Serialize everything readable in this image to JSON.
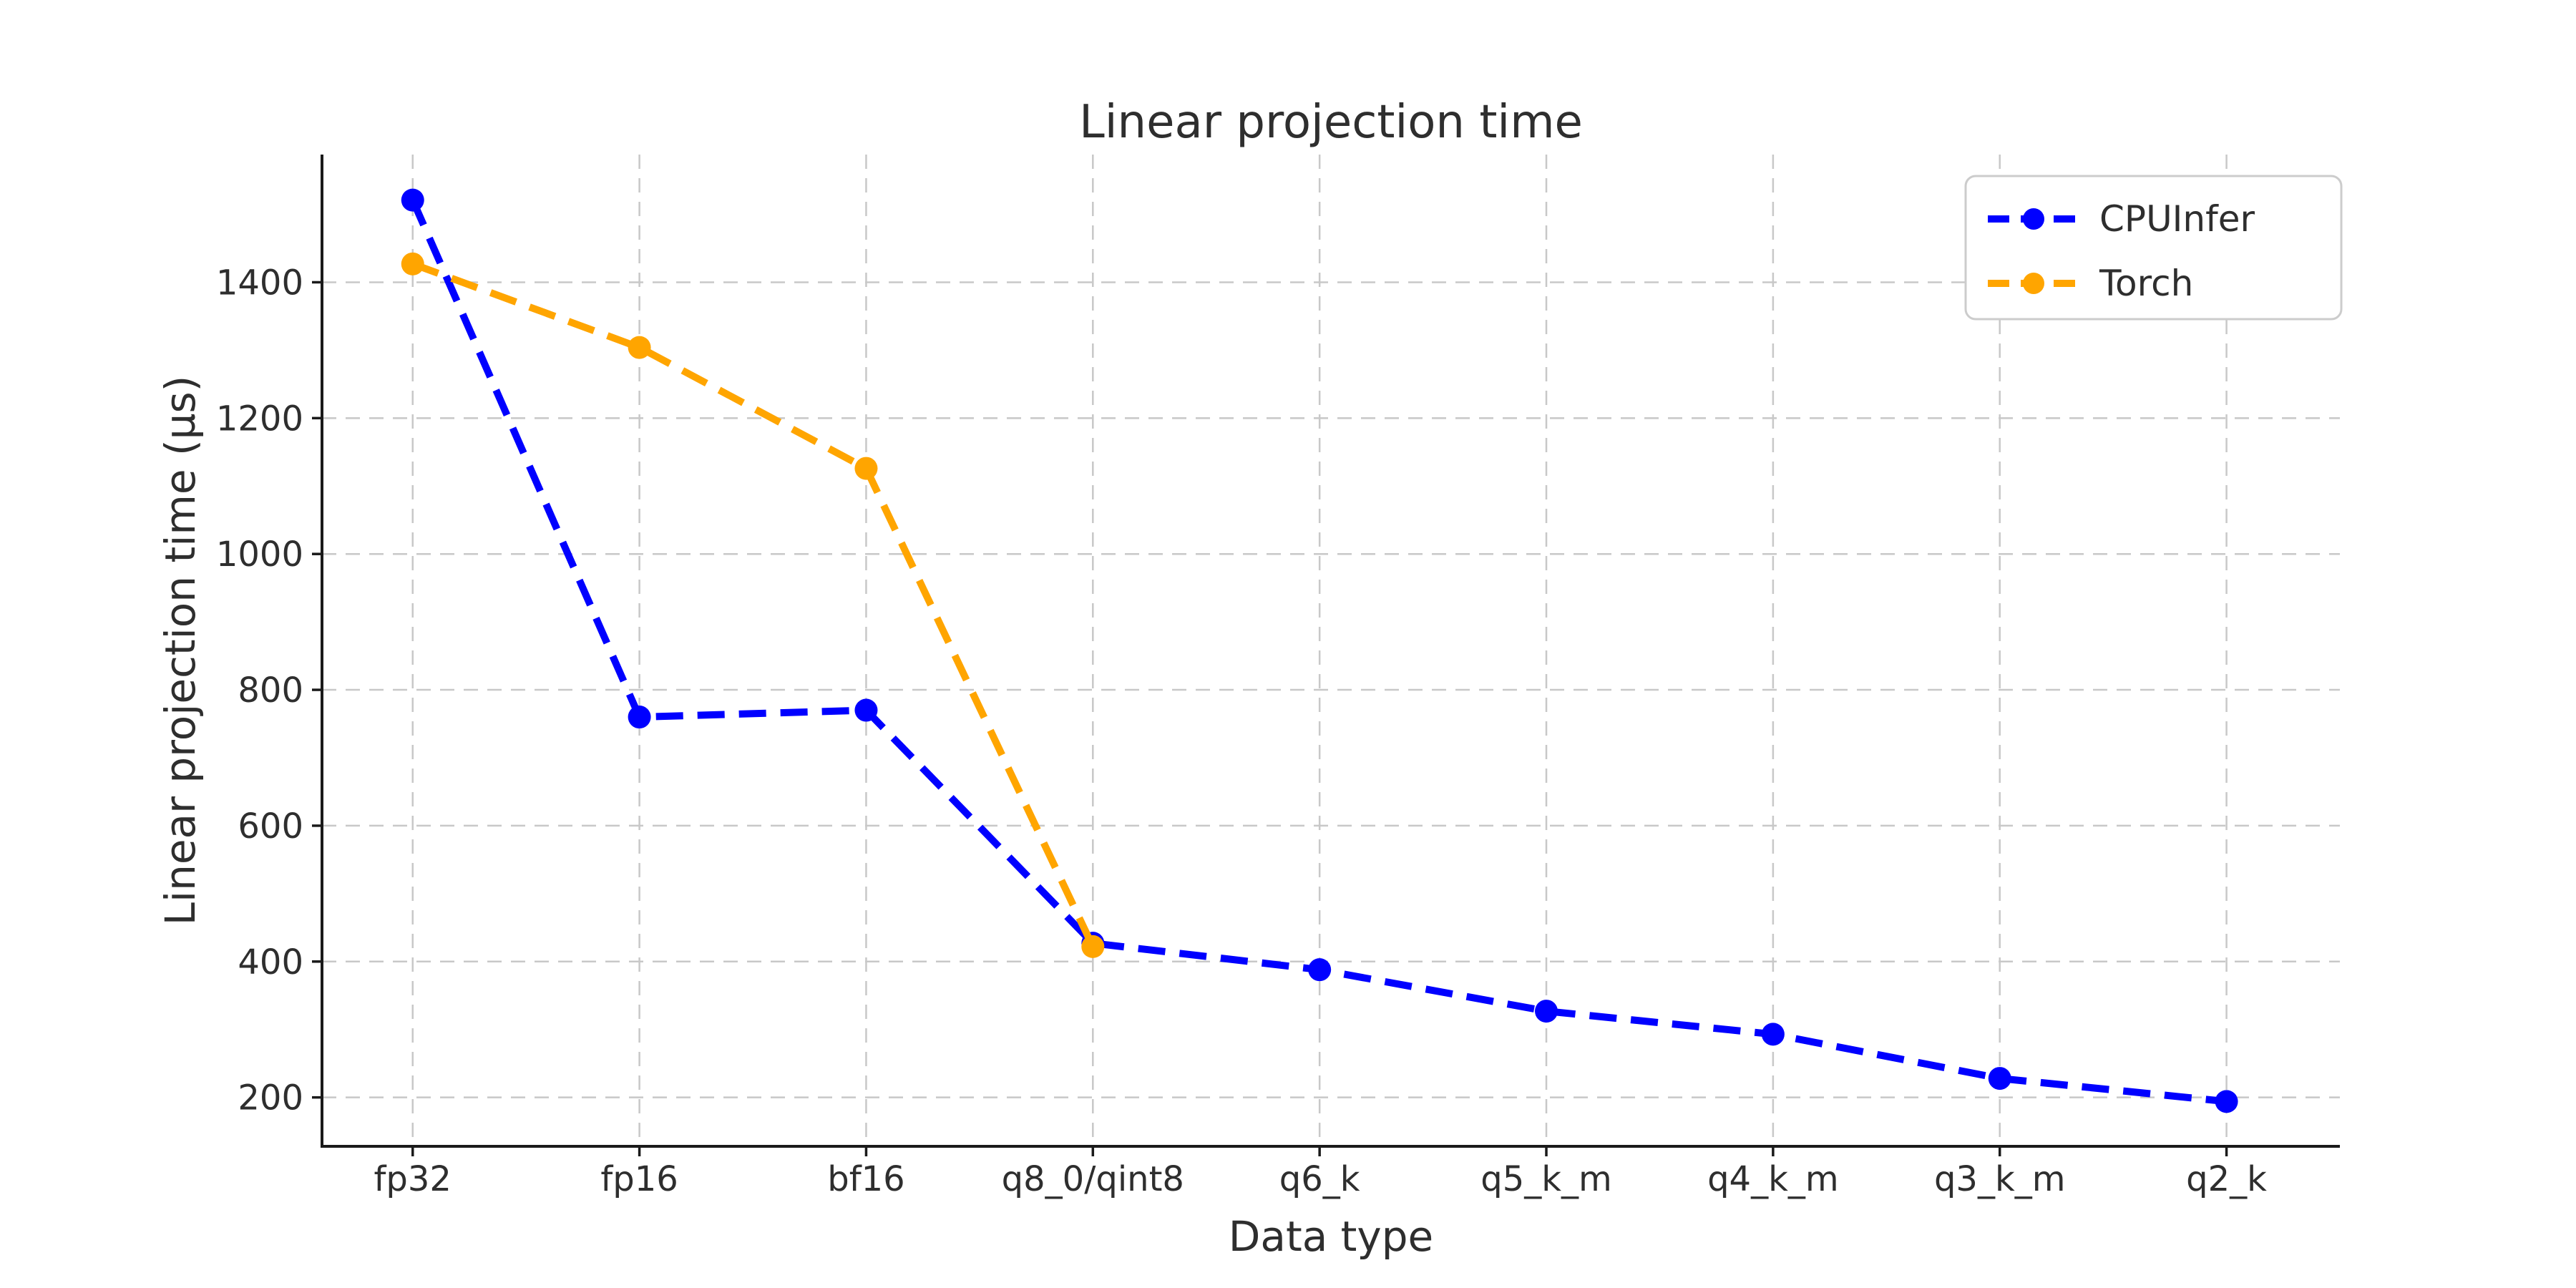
{
  "figure": {
    "background": "#ffffff"
  },
  "chart_data": {
    "type": "line",
    "title": "Linear projection time",
    "xlabel": "Data type",
    "ylabel": "Linear projection time (µs)",
    "categories": [
      "fp32",
      "fp16",
      "bf16",
      "q8_0/qint8",
      "q6_k",
      "q5_k_m",
      "q4_k_m",
      "q3_k_m",
      "q2_k"
    ],
    "series": [
      {
        "name": "CPUInfer",
        "color": "#0000ff",
        "values": [
          1521,
          760,
          770,
          427,
          388,
          327,
          293,
          228,
          194
        ]
      },
      {
        "name": "Torch",
        "color": "#ffa500",
        "values": [
          1427,
          1304,
          1126,
          422,
          null,
          null,
          null,
          null,
          null
        ]
      }
    ],
    "ylim": [
      128,
      1588
    ],
    "yticks": [
      200,
      400,
      600,
      800,
      1000,
      1200,
      1400
    ],
    "xlim": [
      -0.4,
      8.5
    ],
    "grid": true,
    "grid_style": "dashed",
    "line_style": "dashed",
    "marker": "circle",
    "legend": {
      "position": "top-right",
      "entries": [
        "CPUInfer",
        "Torch"
      ]
    }
  },
  "colors": {
    "grid": "#c8c8c8",
    "spine": "#1a1a1a",
    "tick": "#1a1a1a",
    "text": "#2e2e2e",
    "legend_border": "#cccccc",
    "legend_background": "#ffffff"
  }
}
